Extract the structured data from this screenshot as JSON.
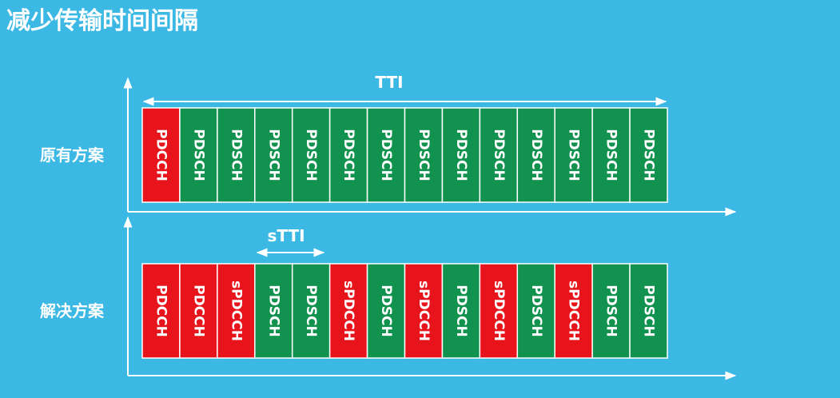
{
  "title": "减少传输时间间隔",
  "rows": [
    {
      "label": "原有方案",
      "cells": [
        "PDCCH",
        "PDSCH",
        "PDSCH",
        "PDSCH",
        "PDSCH",
        "PDSCH",
        "PDSCH",
        "PDSCH",
        "PDSCH",
        "PDSCH",
        "PDSCH",
        "PDSCH",
        "PDSCH",
        "PDSCH"
      ]
    },
    {
      "label": "解决方案",
      "cells": [
        "PDCCH",
        "PDCCH",
        "sPDCCH",
        "PDSCH",
        "PDSCH",
        "sPDCCH",
        "PDSCH",
        "sPDCCH",
        "PDSCH",
        "sPDCCH",
        "PDSCH",
        "sPDCCH",
        "PDSCH",
        "PDSCH"
      ]
    }
  ],
  "tti": "TTI",
  "stti": "sTTI"
}
